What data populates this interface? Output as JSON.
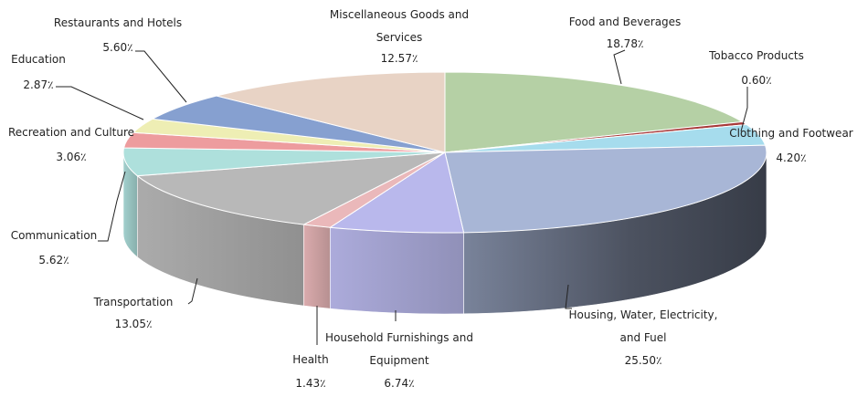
{
  "chart_data": {
    "type": "pie",
    "title": "",
    "slices": [
      {
        "name": "Food and Beverages",
        "label_lines": [
          "Food and Beverages"
        ],
        "value": 18.78,
        "value_label": "18.78٪",
        "color": "#b5d0a5"
      },
      {
        "name": "Tobacco Products",
        "label_lines": [
          "Tobacco Products"
        ],
        "value": 0.6,
        "value_label": "0.60٪",
        "color": "#a83a3a"
      },
      {
        "name": "Clothing and Footwear",
        "label_lines": [
          "Clothing and Footwear"
        ],
        "value": 4.2,
        "value_label": "4.20٪",
        "color": "#a6dced"
      },
      {
        "name": "Housing, Water, Electricity, and Fuel",
        "label_lines": [
          "Housing, Water, Electricity,",
          "and Fuel"
        ],
        "value": 25.5,
        "value_label": "25.50٪",
        "color": "#a8b6d6"
      },
      {
        "name": "Household Furnishings and Equipment",
        "label_lines": [
          "Household Furnishings and",
          "Equipment"
        ],
        "value": 6.74,
        "value_label": "6.74٪",
        "color": "#b9b8ec"
      },
      {
        "name": "Health",
        "label_lines": [
          "Health"
        ],
        "value": 1.43,
        "value_label": "1.43٪",
        "color": "#eab8ba"
      },
      {
        "name": "Transportation",
        "label_lines": [
          "Transportation"
        ],
        "value": 13.05,
        "value_label": "13.05٪",
        "color": "#b8b8b8"
      },
      {
        "name": "Communication",
        "label_lines": [
          "Communication"
        ],
        "value": 5.62,
        "value_label": "5.62٪",
        "color": "#aee0dc"
      },
      {
        "name": "Recreation and Culture",
        "label_lines": [
          "Recreation and Culture"
        ],
        "value": 3.06,
        "value_label": "3.06٪",
        "color": "#ed9c9e"
      },
      {
        "name": "Education",
        "label_lines": [
          "Education"
        ],
        "value": 2.87,
        "value_label": "2.87٪",
        "color": "#eeeeb4"
      },
      {
        "name": "Restaurants and Hotels",
        "label_lines": [
          "Restaurants and Hotels"
        ],
        "value": 5.6,
        "value_label": "5.60٪",
        "color": "#86a0d0"
      },
      {
        "name": "Miscellaneous Goods and Services",
        "label_lines": [
          "Miscellaneous Goods and",
          "Services"
        ],
        "value": 12.57,
        "value_label": "12.57٪",
        "color": "#e8d3c5"
      }
    ]
  }
}
